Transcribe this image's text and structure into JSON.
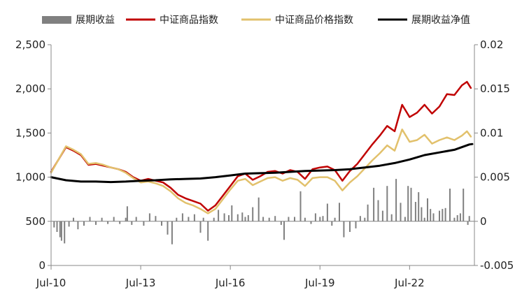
{
  "chart_data": {
    "type": "line",
    "legend": {
      "position": "top",
      "entries": [
        {
          "key": "roll",
          "label": "展期收益",
          "color": "#808080",
          "marker": "bar"
        },
        {
          "key": "ccpi",
          "label": "中证商品指数",
          "color": "#c00000",
          "marker": "line"
        },
        {
          "key": "cppi",
          "label": "中证商品价格指数",
          "color": "#e2c16c",
          "marker": "line"
        },
        {
          "key": "nav",
          "label": "展期收益净值",
          "color": "#000000",
          "marker": "line"
        }
      ]
    },
    "x_axis": {
      "min": 2010.5,
      "max": 2024.67,
      "ticks": [
        {
          "value": 2010.5,
          "label": "Jul-10"
        },
        {
          "value": 2013.5,
          "label": "Jul-13"
        },
        {
          "value": 2016.5,
          "label": "Jul-16"
        },
        {
          "value": 2019.5,
          "label": "Jul-19"
        },
        {
          "value": 2022.5,
          "label": "Jul-22"
        }
      ]
    },
    "y_left": {
      "min": 0,
      "max": 2500,
      "ticks": [
        {
          "value": 0,
          "label": "0"
        },
        {
          "value": 500,
          "label": "500"
        },
        {
          "value": 1000,
          "label": "1,000"
        },
        {
          "value": 1500,
          "label": "1,500"
        },
        {
          "value": 2000,
          "label": "2,000"
        },
        {
          "value": 2500,
          "label": "2,500"
        }
      ]
    },
    "y_right": {
      "min": -0.005,
      "max": 0.02,
      "ticks": [
        {
          "value": -0.005,
          "label": "-0.005"
        },
        {
          "value": 0,
          "label": "0"
        },
        {
          "value": 0.005,
          "label": "0.005"
        },
        {
          "value": 0.01,
          "label": "0.01"
        },
        {
          "value": 0.015,
          "label": "0.015"
        },
        {
          "value": 0.02,
          "label": "0.02"
        }
      ]
    },
    "series": [
      {
        "key": "ccpi",
        "name": "中证商品指数",
        "axis": "left",
        "color": "#c00000",
        "points": [
          [
            2010.5,
            1060
          ],
          [
            2010.75,
            1200
          ],
          [
            2011.0,
            1340
          ],
          [
            2011.25,
            1300
          ],
          [
            2011.5,
            1250
          ],
          [
            2011.75,
            1140
          ],
          [
            2012.0,
            1150
          ],
          [
            2012.25,
            1130
          ],
          [
            2012.5,
            1110
          ],
          [
            2012.75,
            1090
          ],
          [
            2013.0,
            1060
          ],
          [
            2013.25,
            1000
          ],
          [
            2013.5,
            960
          ],
          [
            2013.75,
            980
          ],
          [
            2014.0,
            960
          ],
          [
            2014.25,
            940
          ],
          [
            2014.5,
            880
          ],
          [
            2014.75,
            800
          ],
          [
            2015.0,
            760
          ],
          [
            2015.25,
            730
          ],
          [
            2015.5,
            700
          ],
          [
            2015.75,
            620
          ],
          [
            2016.0,
            680
          ],
          [
            2016.25,
            790
          ],
          [
            2016.5,
            900
          ],
          [
            2016.75,
            1010
          ],
          [
            2017.0,
            1040
          ],
          [
            2017.25,
            970
          ],
          [
            2017.5,
            1010
          ],
          [
            2017.75,
            1060
          ],
          [
            2018.0,
            1070
          ],
          [
            2018.25,
            1040
          ],
          [
            2018.5,
            1080
          ],
          [
            2018.75,
            1060
          ],
          [
            2019.0,
            980
          ],
          [
            2019.25,
            1090
          ],
          [
            2019.5,
            1110
          ],
          [
            2019.75,
            1120
          ],
          [
            2020.0,
            1080
          ],
          [
            2020.25,
            960
          ],
          [
            2020.5,
            1070
          ],
          [
            2020.75,
            1150
          ],
          [
            2021.0,
            1260
          ],
          [
            2021.25,
            1370
          ],
          [
            2021.5,
            1470
          ],
          [
            2021.75,
            1580
          ],
          [
            2022.0,
            1520
          ],
          [
            2022.25,
            1820
          ],
          [
            2022.5,
            1680
          ],
          [
            2022.75,
            1730
          ],
          [
            2023.0,
            1820
          ],
          [
            2023.25,
            1720
          ],
          [
            2023.5,
            1800
          ],
          [
            2023.75,
            1940
          ],
          [
            2024.0,
            1930
          ],
          [
            2024.25,
            2040
          ],
          [
            2024.42,
            2080
          ],
          [
            2024.55,
            2010
          ]
        ]
      },
      {
        "key": "cppi",
        "name": "中证商品价格指数",
        "axis": "left",
        "color": "#e2c16c",
        "points": [
          [
            2010.5,
            1050
          ],
          [
            2010.75,
            1200
          ],
          [
            2011.0,
            1350
          ],
          [
            2011.25,
            1310
          ],
          [
            2011.5,
            1260
          ],
          [
            2011.75,
            1150
          ],
          [
            2012.0,
            1160
          ],
          [
            2012.25,
            1140
          ],
          [
            2012.5,
            1110
          ],
          [
            2012.75,
            1090
          ],
          [
            2013.0,
            1050
          ],
          [
            2013.25,
            990
          ],
          [
            2013.5,
            940
          ],
          [
            2013.75,
            950
          ],
          [
            2014.0,
            930
          ],
          [
            2014.25,
            900
          ],
          [
            2014.5,
            840
          ],
          [
            2014.75,
            760
          ],
          [
            2015.0,
            710
          ],
          [
            2015.25,
            680
          ],
          [
            2015.5,
            640
          ],
          [
            2015.75,
            590
          ],
          [
            2016.0,
            640
          ],
          [
            2016.25,
            750
          ],
          [
            2016.5,
            860
          ],
          [
            2016.75,
            960
          ],
          [
            2017.0,
            980
          ],
          [
            2017.25,
            910
          ],
          [
            2017.5,
            950
          ],
          [
            2017.75,
            990
          ],
          [
            2018.0,
            1000
          ],
          [
            2018.25,
            960
          ],
          [
            2018.5,
            990
          ],
          [
            2018.75,
            970
          ],
          [
            2019.0,
            900
          ],
          [
            2019.25,
            990
          ],
          [
            2019.5,
            1000
          ],
          [
            2019.75,
            1000
          ],
          [
            2020.0,
            960
          ],
          [
            2020.25,
            850
          ],
          [
            2020.5,
            940
          ],
          [
            2020.75,
            1010
          ],
          [
            2021.0,
            1100
          ],
          [
            2021.25,
            1190
          ],
          [
            2021.5,
            1270
          ],
          [
            2021.75,
            1360
          ],
          [
            2022.0,
            1300
          ],
          [
            2022.25,
            1540
          ],
          [
            2022.5,
            1400
          ],
          [
            2022.75,
            1420
          ],
          [
            2023.0,
            1480
          ],
          [
            2023.25,
            1380
          ],
          [
            2023.5,
            1420
          ],
          [
            2023.75,
            1450
          ],
          [
            2024.0,
            1420
          ],
          [
            2024.25,
            1470
          ],
          [
            2024.42,
            1520
          ],
          [
            2024.55,
            1460
          ]
        ]
      },
      {
        "key": "nav",
        "name": "展期收益净值",
        "axis": "left",
        "color": "#000000",
        "points": [
          [
            2010.5,
            1000
          ],
          [
            2011.0,
            965
          ],
          [
            2011.5,
            950
          ],
          [
            2012.0,
            950
          ],
          [
            2012.5,
            945
          ],
          [
            2013.0,
            950
          ],
          [
            2013.5,
            960
          ],
          [
            2014.0,
            965
          ],
          [
            2014.5,
            975
          ],
          [
            2015.0,
            980
          ],
          [
            2015.5,
            985
          ],
          [
            2016.0,
            1000
          ],
          [
            2016.5,
            1020
          ],
          [
            2017.0,
            1040
          ],
          [
            2017.5,
            1045
          ],
          [
            2018.0,
            1050
          ],
          [
            2018.5,
            1060
          ],
          [
            2019.0,
            1070
          ],
          [
            2019.5,
            1075
          ],
          [
            2020.0,
            1080
          ],
          [
            2020.5,
            1090
          ],
          [
            2021.0,
            1110
          ],
          [
            2021.5,
            1130
          ],
          [
            2022.0,
            1160
          ],
          [
            2022.5,
            1200
          ],
          [
            2022.75,
            1225
          ],
          [
            2023.0,
            1250
          ],
          [
            2023.5,
            1280
          ],
          [
            2024.0,
            1310
          ],
          [
            2024.5,
            1370
          ],
          [
            2024.6,
            1375
          ]
        ]
      },
      {
        "key": "roll",
        "name": "展期收益",
        "axis": "right",
        "type": "bar",
        "color": "#808080",
        "points": [
          [
            2010.6,
            -0.0007
          ],
          [
            2010.7,
            -0.0012
          ],
          [
            2010.8,
            -0.0018
          ],
          [
            2010.85,
            -0.0022
          ],
          [
            2010.95,
            -0.0025
          ],
          [
            2011.1,
            -0.0006
          ],
          [
            2011.25,
            0.0004
          ],
          [
            2011.4,
            -0.0009
          ],
          [
            2011.6,
            -0.0005
          ],
          [
            2011.8,
            0.0005
          ],
          [
            2012.0,
            -0.0004
          ],
          [
            2012.2,
            0.0004
          ],
          [
            2012.4,
            -0.0003
          ],
          [
            2012.6,
            0.0005
          ],
          [
            2012.8,
            -0.0003
          ],
          [
            2013.0,
            0.0004
          ],
          [
            2013.05,
            0.0017
          ],
          [
            2013.2,
            -0.0004
          ],
          [
            2013.35,
            0.0005
          ],
          [
            2013.6,
            -0.0005
          ],
          [
            2013.8,
            0.0009
          ],
          [
            2014.0,
            0.0006
          ],
          [
            2014.2,
            -0.0005
          ],
          [
            2014.4,
            -0.0015
          ],
          [
            2014.55,
            -0.0026
          ],
          [
            2014.7,
            0.0004
          ],
          [
            2014.9,
            0.0009
          ],
          [
            2015.1,
            0.0005
          ],
          [
            2015.3,
            0.0008
          ],
          [
            2015.5,
            -0.0013
          ],
          [
            2015.6,
            0.0004
          ],
          [
            2015.75,
            -0.0022
          ],
          [
            2015.95,
            0.0004
          ],
          [
            2016.1,
            0.0013
          ],
          [
            2016.3,
            0.0009
          ],
          [
            2016.45,
            0.0007
          ],
          [
            2016.55,
            0.0018
          ],
          [
            2016.75,
            0.0008
          ],
          [
            2016.9,
            0.001
          ],
          [
            2017.0,
            0.0005
          ],
          [
            2017.1,
            0.0007
          ],
          [
            2017.25,
            0.0016
          ],
          [
            2017.45,
            0.0027
          ],
          [
            2017.6,
            0.0005
          ],
          [
            2017.8,
            0.0004
          ],
          [
            2018.0,
            0.0006
          ],
          [
            2018.2,
            -0.0004
          ],
          [
            2018.3,
            -0.0021
          ],
          [
            2018.45,
            0.0005
          ],
          [
            2018.65,
            0.0005
          ],
          [
            2018.85,
            0.0034
          ],
          [
            2019.0,
            0.0004
          ],
          [
            2019.2,
            -0.0003
          ],
          [
            2019.35,
            0.0009
          ],
          [
            2019.5,
            0.0005
          ],
          [
            2019.6,
            0.0006
          ],
          [
            2019.75,
            0.002
          ],
          [
            2019.9,
            -0.0005
          ],
          [
            2020.0,
            0.0004
          ],
          [
            2020.15,
            0.0021
          ],
          [
            2020.3,
            -0.0018
          ],
          [
            2020.5,
            -0.0012
          ],
          [
            2020.7,
            -0.0008
          ],
          [
            2020.85,
            0.0006
          ],
          [
            2021.0,
            0.0004
          ],
          [
            2021.1,
            0.0019
          ],
          [
            2021.3,
            0.0038
          ],
          [
            2021.45,
            0.0024
          ],
          [
            2021.6,
            0.0012
          ],
          [
            2021.75,
            0.004
          ],
          [
            2021.9,
            0.0008
          ],
          [
            2022.05,
            0.0048
          ],
          [
            2022.2,
            0.0021
          ],
          [
            2022.35,
            0.0005
          ],
          [
            2022.45,
            0.004
          ],
          [
            2022.55,
            0.0038
          ],
          [
            2022.7,
            0.0022
          ],
          [
            2022.8,
            0.0033
          ],
          [
            2022.9,
            0.0016
          ],
          [
            2023.0,
            0.0004
          ],
          [
            2023.1,
            0.0026
          ],
          [
            2023.2,
            0.0014
          ],
          [
            2023.3,
            0.0009
          ],
          [
            2023.5,
            0.0012
          ],
          [
            2023.6,
            0.0014
          ],
          [
            2023.7,
            0.0015
          ],
          [
            2023.85,
            0.0037
          ],
          [
            2024.0,
            0.0004
          ],
          [
            2024.1,
            0.0007
          ],
          [
            2024.2,
            0.0009
          ],
          [
            2024.3,
            0.0037
          ],
          [
            2024.45,
            -0.0004
          ],
          [
            2024.5,
            0.0006
          ]
        ]
      }
    ]
  }
}
